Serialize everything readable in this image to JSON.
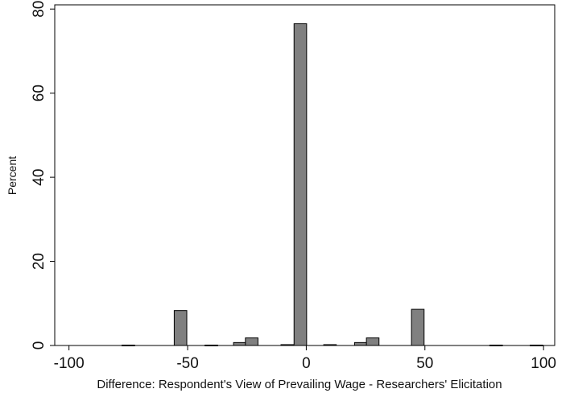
{
  "chart_data": {
    "type": "bar",
    "title": "",
    "xlabel": "Difference: Respondent's View of Prevailing Wage - Researchers' Elicitation",
    "ylabel": "Percent",
    "xlim": [
      -100,
      100
    ],
    "ylim": [
      0,
      80
    ],
    "xticks": [
      -100,
      -50,
      0,
      50,
      100
    ],
    "yticks": [
      0,
      20,
      40,
      60,
      80
    ],
    "xtick_labels": [
      "-100",
      "-50",
      "0",
      "50",
      "100"
    ],
    "ytick_labels": [
      "0",
      "20",
      "40",
      "60",
      "80"
    ],
    "bin_width": 5.3,
    "bins": [
      {
        "x": -75,
        "value": 0.1
      },
      {
        "x": -53,
        "value": 8.3
      },
      {
        "x": -40,
        "value": 0.1
      },
      {
        "x": -28,
        "value": 0.7
      },
      {
        "x": -23,
        "value": 1.8
      },
      {
        "x": -8,
        "value": 0.2
      },
      {
        "x": -2.5,
        "value": 76.5
      },
      {
        "x": 10,
        "value": 0.2
      },
      {
        "x": 23,
        "value": 0.7
      },
      {
        "x": 28,
        "value": 1.8
      },
      {
        "x": 47,
        "value": 8.6
      },
      {
        "x": 80,
        "value": 0.1
      },
      {
        "x": 97,
        "value": 0.1
      }
    ],
    "bar_color": "#808080",
    "bar_edge_color": "#000000",
    "grid": false,
    "legend": "none"
  }
}
